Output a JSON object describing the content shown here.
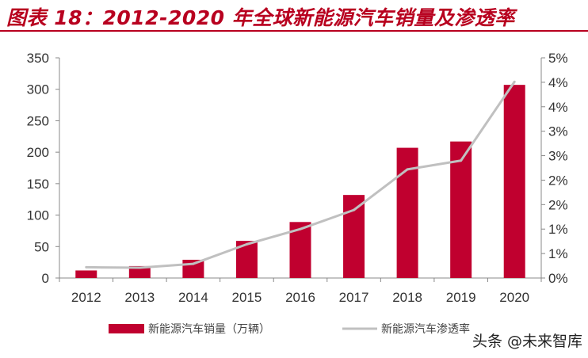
{
  "title": "图表 18：2012-2020 年全球新能源汽车销量及渗透率",
  "watermark": "头条 @未来智库",
  "chart_data": {
    "type": "bar+line",
    "title": "图表 18：2012-2020 年全球新能源汽车销量及渗透率",
    "categories": [
      "2012",
      "2013",
      "2014",
      "2015",
      "2016",
      "2017",
      "2018",
      "2019",
      "2020"
    ],
    "series": [
      {
        "name": "新能源汽车销量（万辆）",
        "type": "bar",
        "axis": "left",
        "color": "#c0002f",
        "values": [
          12,
          19,
          29,
          59,
          89,
          132,
          207,
          217,
          307
        ]
      },
      {
        "name": "新能源汽车渗透率",
        "type": "line",
        "axis": "right",
        "color": "#c0c0c0",
        "values": [
          0.22,
          0.21,
          0.29,
          0.69,
          1.0,
          1.39,
          2.22,
          2.4,
          4.01
        ]
      }
    ],
    "left_axis": {
      "range": [
        0,
        350
      ],
      "ticks": [
        "0",
        "50",
        "100",
        "150",
        "200",
        "250",
        "300",
        "350"
      ]
    },
    "right_axis": {
      "range": [
        0,
        4.5
      ],
      "unit": "%",
      "ticks": [
        "0%",
        "1%",
        "1%",
        "2%",
        "2%",
        "3%",
        "3%",
        "4%",
        "4%",
        "5%"
      ]
    },
    "grid": false,
    "legend": "bottom"
  }
}
